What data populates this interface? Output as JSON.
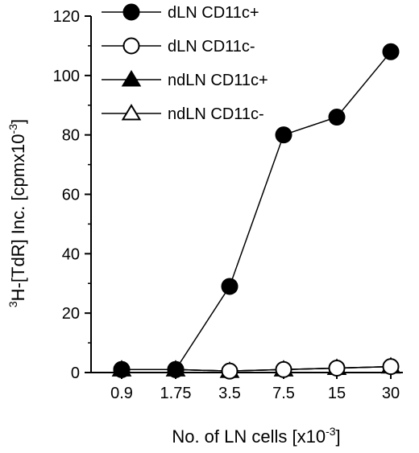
{
  "chart_data": {
    "type": "line",
    "categories": [
      "0.9",
      "1.75",
      "3.5",
      "7.5",
      "15",
      "30"
    ],
    "series": [
      {
        "name": "dLN CD11c+",
        "marker": "filled-circle",
        "values": [
          1,
          1,
          29,
          80,
          86,
          108
        ]
      },
      {
        "name": "dLN CD11c-",
        "marker": "open-circle",
        "values": [
          1,
          1,
          0.5,
          1,
          1.5,
          2
        ]
      },
      {
        "name": "ndLN CD11c+",
        "marker": "filled-triangle",
        "values": [
          1,
          1,
          0.5,
          1,
          1.5,
          2
        ]
      },
      {
        "name": "ndLN CD11c-",
        "marker": "open-triangle",
        "values": [
          1,
          1,
          0.5,
          1,
          1.5,
          2
        ]
      }
    ],
    "xlabel": {
      "main": "No. of LN cells [x10",
      "sup": "-3",
      "end": "]"
    },
    "ylabel": {
      "pre": "3",
      "main": "H-[TdR] Inc. [cpmx10",
      "sup": "-3",
      "end": "]"
    },
    "yticks": [
      0,
      20,
      40,
      60,
      80,
      100,
      120
    ],
    "ylim": [
      0,
      120
    ],
    "legend_position": "top-left",
    "grid": false,
    "colors": {
      "line": "#000000",
      "background": "#ffffff"
    }
  }
}
